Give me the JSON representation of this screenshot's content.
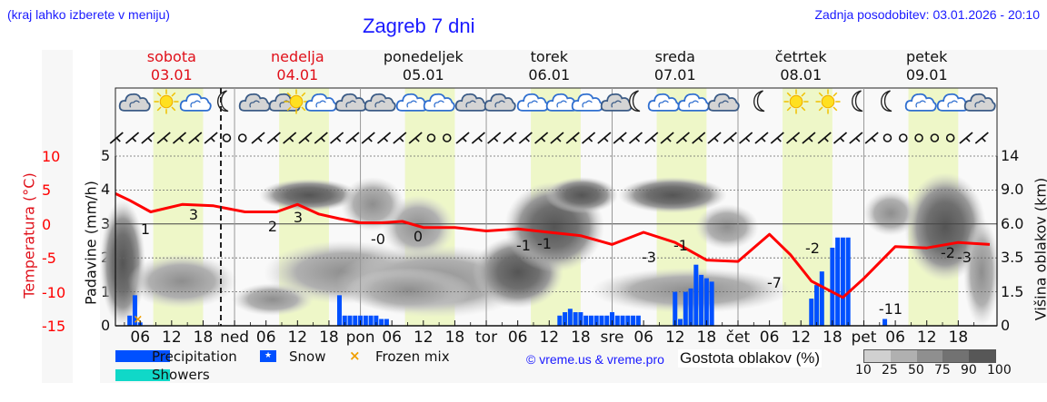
{
  "header": {
    "region_hint": "(kraj lahko izberete v meniju)",
    "title": "Zagreb 7 dni",
    "last_update": "Zadnja posodobitev: 03.01.2026 - 20:10"
  },
  "days": [
    {
      "name": "sobota",
      "date": "03.01",
      "weekend": true
    },
    {
      "name": "nedelja",
      "date": "04.01",
      "weekend": true
    },
    {
      "name": "ponedeljek",
      "date": "05.01",
      "weekend": false
    },
    {
      "name": "torek",
      "date": "06.01",
      "weekend": false
    },
    {
      "name": "sreda",
      "date": "07.01",
      "weekend": false
    },
    {
      "name": "četrtek",
      "date": "08.01",
      "weekend": false
    },
    {
      "name": "petek",
      "date": "09.01",
      "weekend": false
    }
  ],
  "axes": {
    "temp_label": "Temperatura (°C)",
    "precip_label": "Padavine (mm/h)",
    "cloud_height_label": "Višina oblakov (km)",
    "temp_ticks": [
      "10",
      "5",
      "0",
      "-5",
      "-10",
      "-15"
    ],
    "precip_ticks": [
      "5",
      "4",
      "3",
      "2",
      "1",
      "0"
    ],
    "cloud_height_ticks": [
      "14",
      "9.0",
      "6.0",
      "3.5",
      "1.5",
      "0"
    ],
    "x_ticks": [
      "06",
      "12",
      "18",
      "ned",
      "06",
      "12",
      "18",
      "pon",
      "06",
      "12",
      "18",
      "tor",
      "06",
      "12",
      "18",
      "sre",
      "06",
      "12",
      "18",
      "čet",
      "06",
      "12",
      "18",
      "pet",
      "06",
      "12",
      "18"
    ]
  },
  "legend": {
    "precipitation": "Precipitation",
    "snow": "Snow",
    "frozen_mix": "Frozen mix",
    "showers": "Showers",
    "copyright": "© vreme.us & vreme.pro",
    "cloud_density_label": "Gostota oblakov (%)",
    "cloud_density_ticks": [
      "10",
      "25",
      "50",
      "75",
      "90",
      "100"
    ]
  },
  "colors": {
    "precipitation": "#0050ff",
    "showers": "#10d8c8",
    "frozen_mix": "#f0a000",
    "temperature": "#ff0000",
    "weekend_text": "#e0101a",
    "link": "#1a1aff",
    "daylight_band": "#eef7c8"
  },
  "chart_data": {
    "type": "line",
    "title": "Zagreb 7 dni",
    "xlabel": "",
    "ylabel": "Temperatura (°C)",
    "ylim": [
      -15,
      10
    ],
    "y2label": "Padavine (mm/h)",
    "y2lim": [
      0,
      5
    ],
    "y3label": "Višina oblakov (km)",
    "y3_ticks": [
      0,
      1.5,
      3.5,
      6.0,
      9.0,
      14
    ],
    "x_range_hours": [
      0,
      168
    ],
    "x_start": "sobota 03.01 00:00",
    "grid": true,
    "series": [
      {
        "name": "Temperatura",
        "type": "line",
        "hours": [
          1,
          4,
          8,
          14,
          20,
          26,
          32,
          36,
          40,
          44,
          48,
          52,
          56,
          60,
          66,
          72,
          78,
          84,
          90,
          96,
          102,
          108,
          114,
          120,
          126,
          130,
          134,
          140,
          144,
          150,
          156,
          162,
          168
        ],
        "values": [
          4.5,
          3.5,
          1.8,
          2.9,
          2.7,
          1.8,
          1.8,
          2.9,
          1.5,
          0.8,
          0.2,
          0.2,
          0.4,
          -0.5,
          -0.5,
          -1.0,
          -0.7,
          -1.2,
          -1.7,
          -3.0,
          -1.2,
          -2.7,
          -5.3,
          -5.5,
          -1.5,
          -4.5,
          -8.4,
          -10.8,
          -8.0,
          -3.3,
          -3.5,
          -2.7,
          -3.0
        ]
      },
      {
        "name": "Precipitation",
        "type": "bar",
        "hours": [
          4,
          5,
          6,
          44,
          45,
          46,
          47,
          48,
          49,
          50,
          51,
          52,
          53,
          86,
          87,
          88,
          89,
          90,
          91,
          92,
          93,
          94,
          95,
          96,
          97,
          98,
          99,
          100,
          101,
          108,
          109,
          110,
          111,
          112,
          113,
          114,
          115,
          134,
          135,
          136,
          138,
          139,
          140,
          141,
          148
        ],
        "values": [
          0.3,
          0.9,
          0.1,
          0.9,
          0.3,
          0.3,
          0.3,
          0.3,
          0.3,
          0.3,
          0.3,
          0.2,
          0.2,
          0.3,
          0.4,
          0.5,
          0.4,
          0.4,
          0.3,
          0.3,
          0.3,
          0.3,
          0.3,
          0.4,
          0.3,
          0.3,
          0.3,
          0.3,
          0.3,
          1.0,
          0.2,
          1.0,
          1.1,
          1.8,
          1.5,
          1.4,
          1.3,
          0.8,
          1.2,
          1.6,
          2.3,
          2.6,
          2.6,
          2.6,
          0.2
        ]
      }
    ],
    "temperature_labels": [
      {
        "hour": 7,
        "text": "1"
      },
      {
        "hour": 16,
        "text": "3"
      },
      {
        "hour": 31,
        "text": "2"
      },
      {
        "hour": 36,
        "text": "3"
      },
      {
        "hour": 52,
        "text": "-0"
      },
      {
        "hour": 60,
        "text": "0"
      },
      {
        "hour": 80,
        "text": "-1"
      },
      {
        "hour": 84,
        "text": "-1"
      },
      {
        "hour": 102,
        "text": "-3"
      },
      {
        "hour": 108,
        "text": "-1"
      },
      {
        "hour": 128,
        "text": "-7"
      },
      {
        "hour": 134,
        "text": "-2"
      },
      {
        "hour": 148,
        "text": "-11"
      },
      {
        "hour": 163,
        "text": "-2"
      },
      {
        "hour": 166,
        "text": "-3"
      }
    ],
    "frozen_mix_markers": [
      {
        "hour": 5.5
      }
    ],
    "cloud_density_legend": [
      10,
      25,
      50,
      75,
      90,
      100
    ]
  }
}
